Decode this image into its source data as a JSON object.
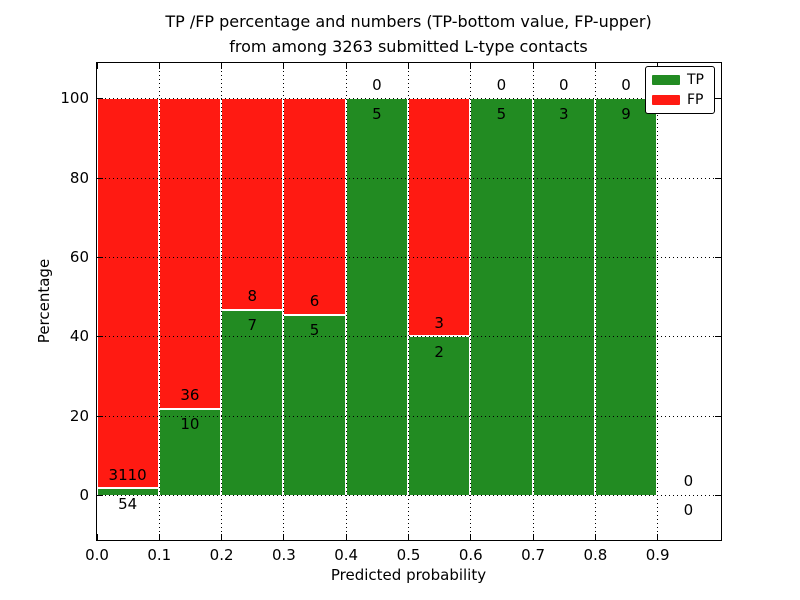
{
  "chart_data": {
    "type": "bar",
    "stacked": true,
    "title_line1": "TP /FP percentage and numbers (TP-bottom value, FP-upper)",
    "title_line2": "from among 3263 submitted L-type contacts",
    "xlabel": "Predicted probability",
    "ylabel": "Percentage",
    "total_contacts": 3263,
    "bins": [
      {
        "x0": 0.0,
        "x1": 0.1,
        "tp": 54,
        "fp": 3110
      },
      {
        "x0": 0.1,
        "x1": 0.2,
        "tp": 10,
        "fp": 36
      },
      {
        "x0": 0.2,
        "x1": 0.3,
        "tp": 7,
        "fp": 8
      },
      {
        "x0": 0.3,
        "x1": 0.4,
        "tp": 5,
        "fp": 6
      },
      {
        "x0": 0.4,
        "x1": 0.5,
        "tp": 5,
        "fp": 0
      },
      {
        "x0": 0.5,
        "x1": 0.6,
        "tp": 2,
        "fp": 3
      },
      {
        "x0": 0.6,
        "x1": 0.7,
        "tp": 5,
        "fp": 0
      },
      {
        "x0": 0.7,
        "x1": 0.8,
        "tp": 3,
        "fp": 0
      },
      {
        "x0": 0.8,
        "x1": 0.9,
        "tp": 9,
        "fp": 0
      },
      {
        "x0": 0.9,
        "x1": 1.0,
        "tp": 0,
        "fp": 0
      }
    ],
    "xticks": [
      "0.0",
      "0.1",
      "0.2",
      "0.3",
      "0.4",
      "0.5",
      "0.6",
      "0.7",
      "0.8",
      "0.9"
    ],
    "yticks": [
      0,
      20,
      40,
      60,
      80,
      100
    ],
    "xlim": [
      0.0,
      1.0
    ],
    "ylim": [
      -11,
      109
    ],
    "grid": true,
    "legend": [
      {
        "label": "TP",
        "color": "#228b22"
      },
      {
        "label": "FP",
        "color": "#ff1a12"
      }
    ],
    "colors": {
      "tp": "#228b22",
      "fp": "#ff1a12",
      "grid": "#000000"
    },
    "legend_position": "upper right"
  }
}
